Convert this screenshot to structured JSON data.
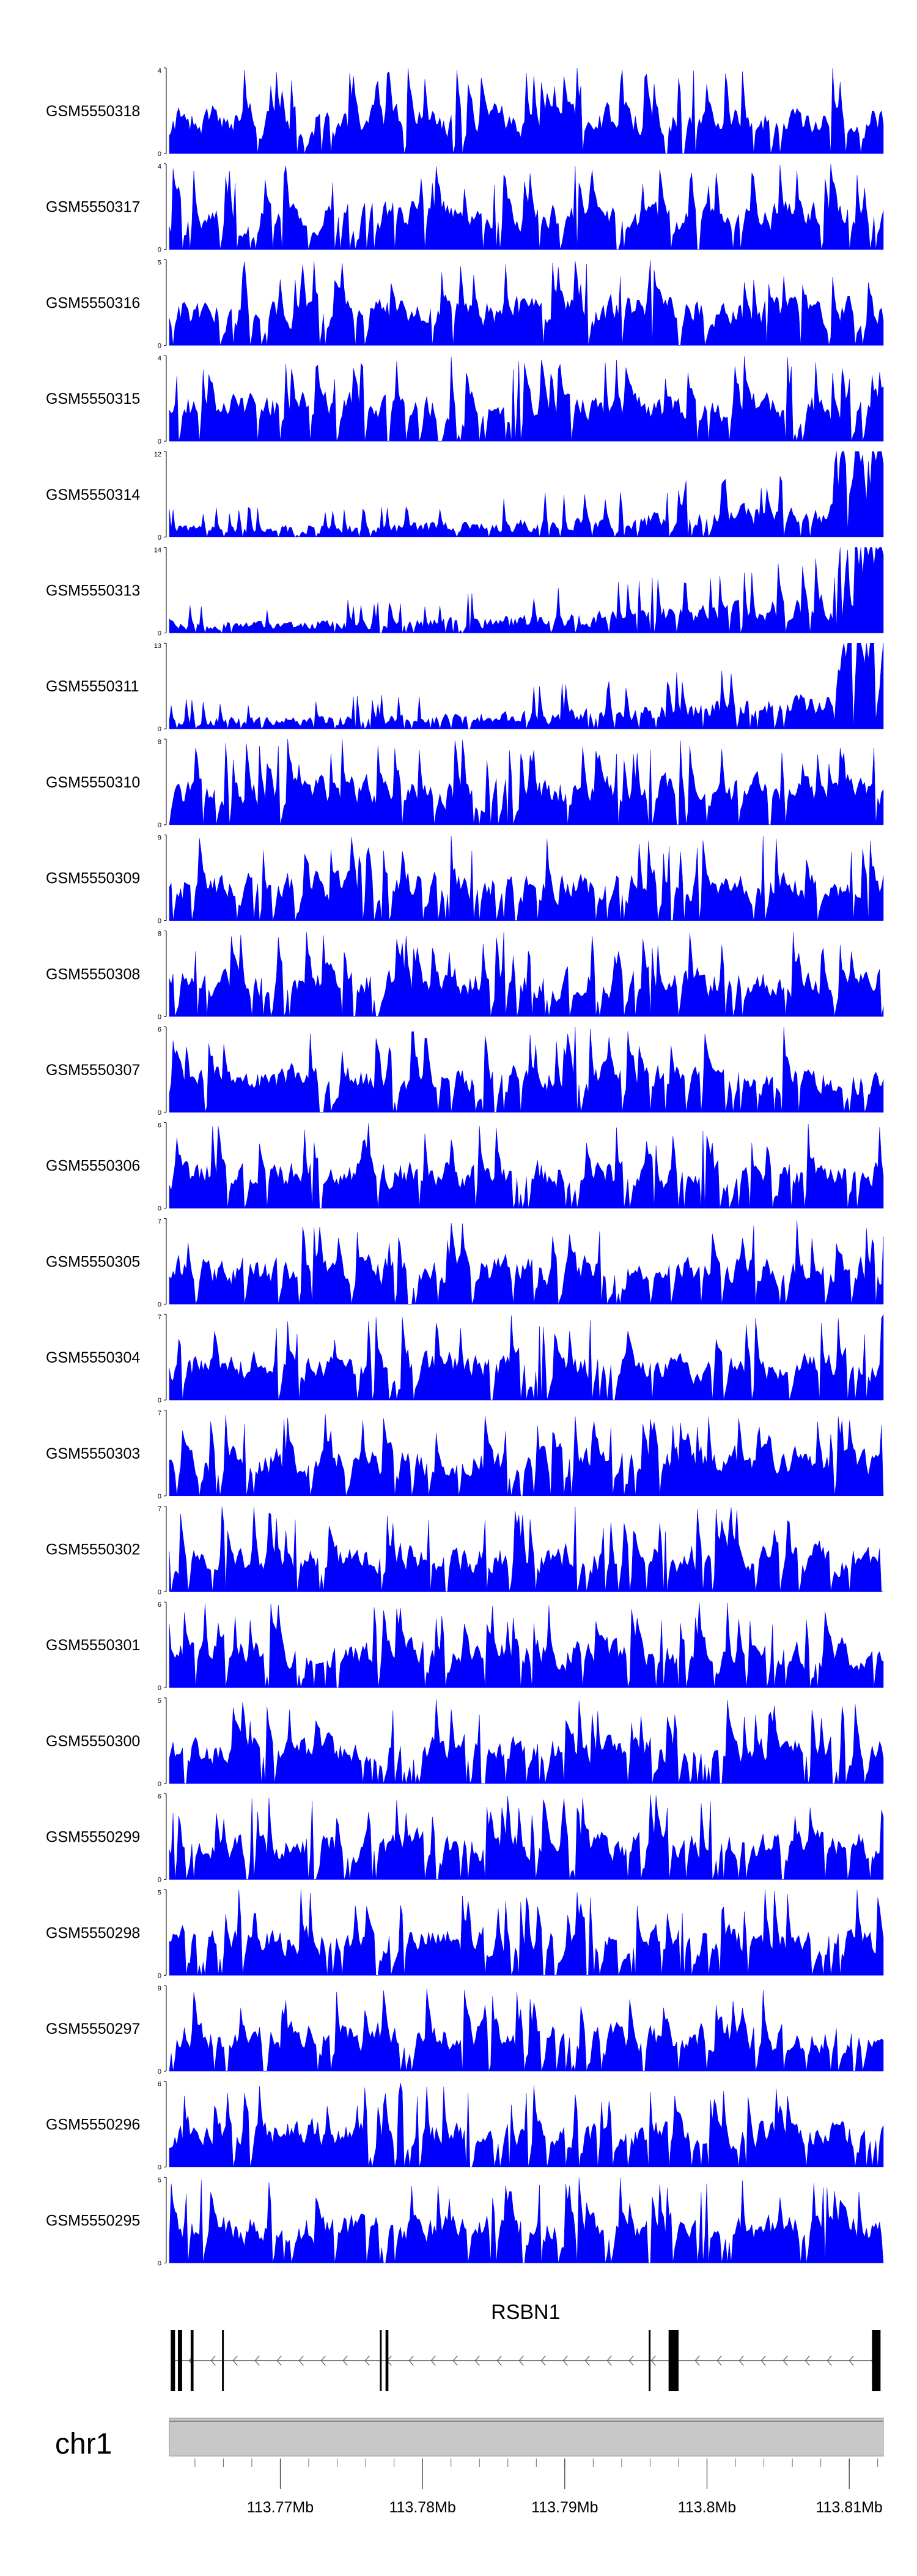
{
  "chart_data": {
    "type": "area",
    "fill_color": "#0000ff",
    "tracks": [
      {
        "name": "GSM5550318",
        "ymin": 0,
        "ymax": 4,
        "seed": 318
      },
      {
        "name": "GSM5550317",
        "ymin": 0,
        "ymax": 4,
        "seed": 317
      },
      {
        "name": "GSM5550316",
        "ymin": 0,
        "ymax": 5,
        "seed": 316
      },
      {
        "name": "GSM5550315",
        "ymin": 0,
        "ymax": 4,
        "seed": 315
      },
      {
        "name": "GSM5550314",
        "ymin": 0,
        "ymax": 12,
        "seed": 314
      },
      {
        "name": "GSM5550313",
        "ymin": 0,
        "ymax": 14,
        "seed": 313
      },
      {
        "name": "GSM5550311",
        "ymin": 0,
        "ymax": 13,
        "seed": 311
      },
      {
        "name": "GSM5550310",
        "ymin": 0,
        "ymax": 8,
        "seed": 310
      },
      {
        "name": "GSM5550309",
        "ymin": 0,
        "ymax": 9,
        "seed": 309
      },
      {
        "name": "GSM5550308",
        "ymin": 0,
        "ymax": 8,
        "seed": 308
      },
      {
        "name": "GSM5550307",
        "ymin": 0,
        "ymax": 6,
        "seed": 307
      },
      {
        "name": "GSM5550306",
        "ymin": 0,
        "ymax": 6,
        "seed": 306
      },
      {
        "name": "GSM5550305",
        "ymin": 0,
        "ymax": 7,
        "seed": 305
      },
      {
        "name": "GSM5550304",
        "ymin": 0,
        "ymax": 7,
        "seed": 304
      },
      {
        "name": "GSM5550303",
        "ymin": 0,
        "ymax": 7,
        "seed": 303
      },
      {
        "name": "GSM5550302",
        "ymin": 0,
        "ymax": 7,
        "seed": 302
      },
      {
        "name": "GSM5550301",
        "ymin": 0,
        "ymax": 6,
        "seed": 301
      },
      {
        "name": "GSM5550300",
        "ymin": 0,
        "ymax": 5,
        "seed": 300
      },
      {
        "name": "GSM5550299",
        "ymin": 0,
        "ymax": 6,
        "seed": 299
      },
      {
        "name": "GSM5550298",
        "ymin": 0,
        "ymax": 5,
        "seed": 298
      },
      {
        "name": "GSM5550297",
        "ymin": 0,
        "ymax": 9,
        "seed": 297
      },
      {
        "name": "GSM5550296",
        "ymin": 0,
        "ymax": 6,
        "seed": 296
      },
      {
        "name": "GSM5550295",
        "ymin": 0,
        "ymax": 5,
        "seed": 295
      }
    ],
    "gene": {
      "name": "RSBN1",
      "strand": "-",
      "exons": [
        [
          113.7623,
          113.7626
        ],
        [
          113.7628,
          113.7631
        ],
        [
          113.7637,
          113.7639
        ],
        [
          113.7659,
          113.766
        ],
        [
          113.777,
          113.7771
        ],
        [
          113.7774,
          113.7776
        ],
        [
          113.7959,
          113.796
        ],
        [
          113.7973,
          113.798
        ],
        [
          113.8116,
          113.8122
        ]
      ]
    },
    "chromosome": "chr1",
    "x_range_mb": [
      113.7622,
      113.8124
    ],
    "x_ticks_mb": [
      113.764,
      113.766,
      113.768,
      113.77,
      113.772,
      113.774,
      113.776,
      113.778,
      113.78,
      113.782,
      113.784,
      113.786,
      113.788,
      113.79,
      113.792,
      113.794,
      113.796,
      113.798,
      113.8,
      113.802,
      113.804,
      113.806,
      113.808,
      113.81,
      113.812
    ],
    "x_tick_labels": [
      {
        "value": 113.77,
        "label": "113.77Mb"
      },
      {
        "value": 113.78,
        "label": "113.78Mb"
      },
      {
        "value": 113.79,
        "label": "113.79Mb"
      },
      {
        "value": 113.8,
        "label": "113.8Mb"
      },
      {
        "value": 113.81,
        "label": "113.81Mb"
      }
    ]
  }
}
